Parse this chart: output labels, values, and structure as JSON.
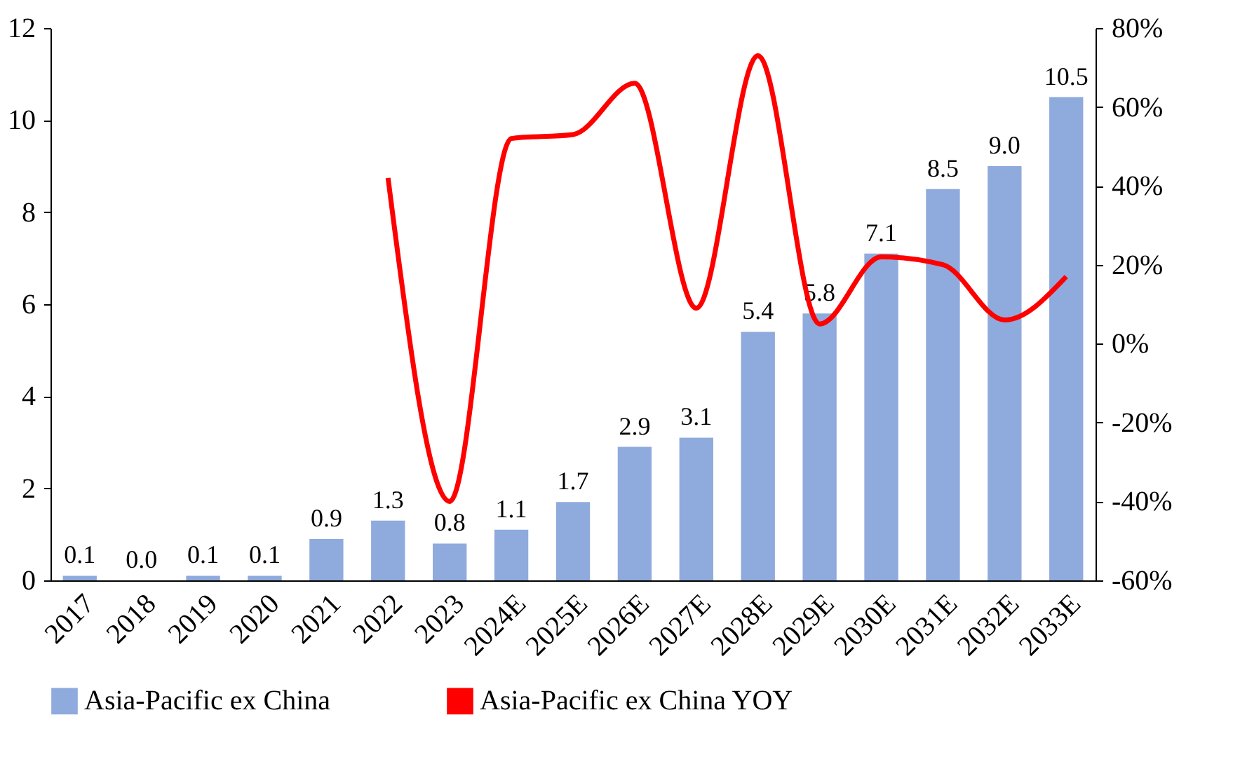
{
  "chart_data": {
    "type": "bar",
    "categories": [
      "2017",
      "2018",
      "2019",
      "2020",
      "2021",
      "2022",
      "2023",
      "2024E",
      "2025E",
      "2026E",
      "2027E",
      "2028E",
      "2029E",
      "2030E",
      "2031E",
      "2032E",
      "2033E"
    ],
    "series": [
      {
        "name": "Asia-Pacific ex China",
        "color": "#8faadc",
        "values": [
          0.1,
          0.0,
          0.1,
          0.1,
          0.9,
          1.3,
          0.8,
          1.1,
          1.7,
          2.9,
          3.1,
          5.4,
          5.8,
          7.1,
          8.5,
          9.0,
          10.5
        ],
        "value_labels": [
          "0.1",
          "0.0",
          "0.1",
          "0.1",
          "0.9",
          "1.3",
          "0.8",
          "1.1",
          "1.7",
          "2.9",
          "3.1",
          "5.4",
          "5.8",
          "7.1",
          "8.5",
          "9.0",
          "10.5"
        ]
      },
      {
        "name": "Asia-Pacific ex China YOY",
        "type": "line",
        "axis": "y2",
        "color": "#ff0000",
        "values": [
          null,
          null,
          null,
          null,
          null,
          42,
          -40,
          52,
          53,
          66,
          9,
          73,
          5,
          22,
          20,
          6,
          17
        ]
      }
    ],
    "ylim": [
      0,
      12
    ],
    "yticks": [
      0,
      2,
      4,
      6,
      8,
      10,
      12
    ],
    "y2lim": [
      -60,
      80
    ],
    "y2ticks": [
      {
        "value": -60,
        "label": "-60%"
      },
      {
        "value": -40,
        "label": "-40%"
      },
      {
        "value": -20,
        "label": "-20%"
      },
      {
        "value": 0,
        "label": "0%"
      },
      {
        "value": 20,
        "label": "20%"
      },
      {
        "value": 40,
        "label": "40%"
      },
      {
        "value": 60,
        "label": "60%"
      },
      {
        "value": 80,
        "label": "80%"
      }
    ],
    "legend": "bottom",
    "grid": false
  }
}
